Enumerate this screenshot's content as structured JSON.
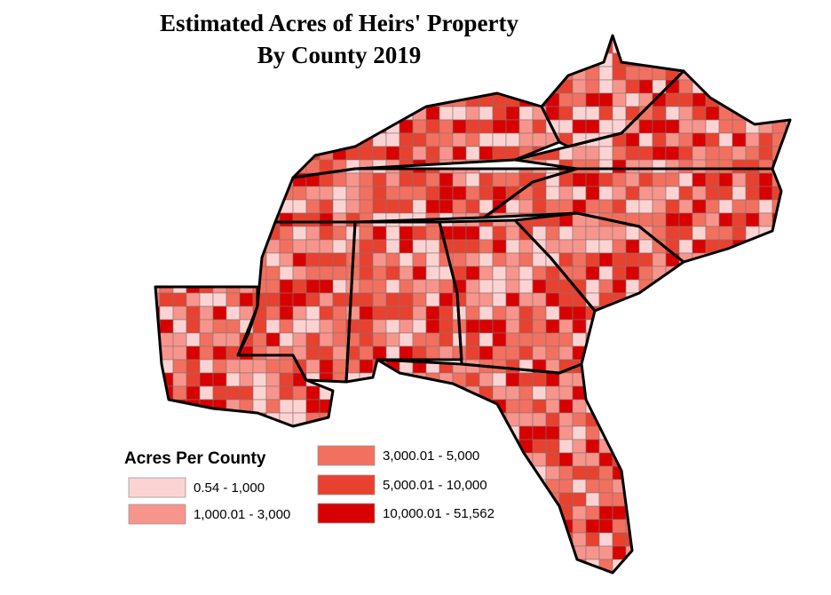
{
  "title": {
    "line1": "Estimated Acres of Heirs' Property",
    "line2": "By County 2019"
  },
  "legend": {
    "title": "Acres Per County",
    "items": [
      {
        "label": "0.54 - 1,000",
        "color": "#fcd3d3"
      },
      {
        "label": "1,000.01 - 3,000",
        "color": "#f7958c"
      },
      {
        "label": "3,000.01 - 5,000",
        "color": "#f2705f"
      },
      {
        "label": "5,000.01 - 10,000",
        "color": "#e8412f"
      },
      {
        "label": "10,000.01 - 51,562",
        "color": "#d80000"
      }
    ]
  }
}
